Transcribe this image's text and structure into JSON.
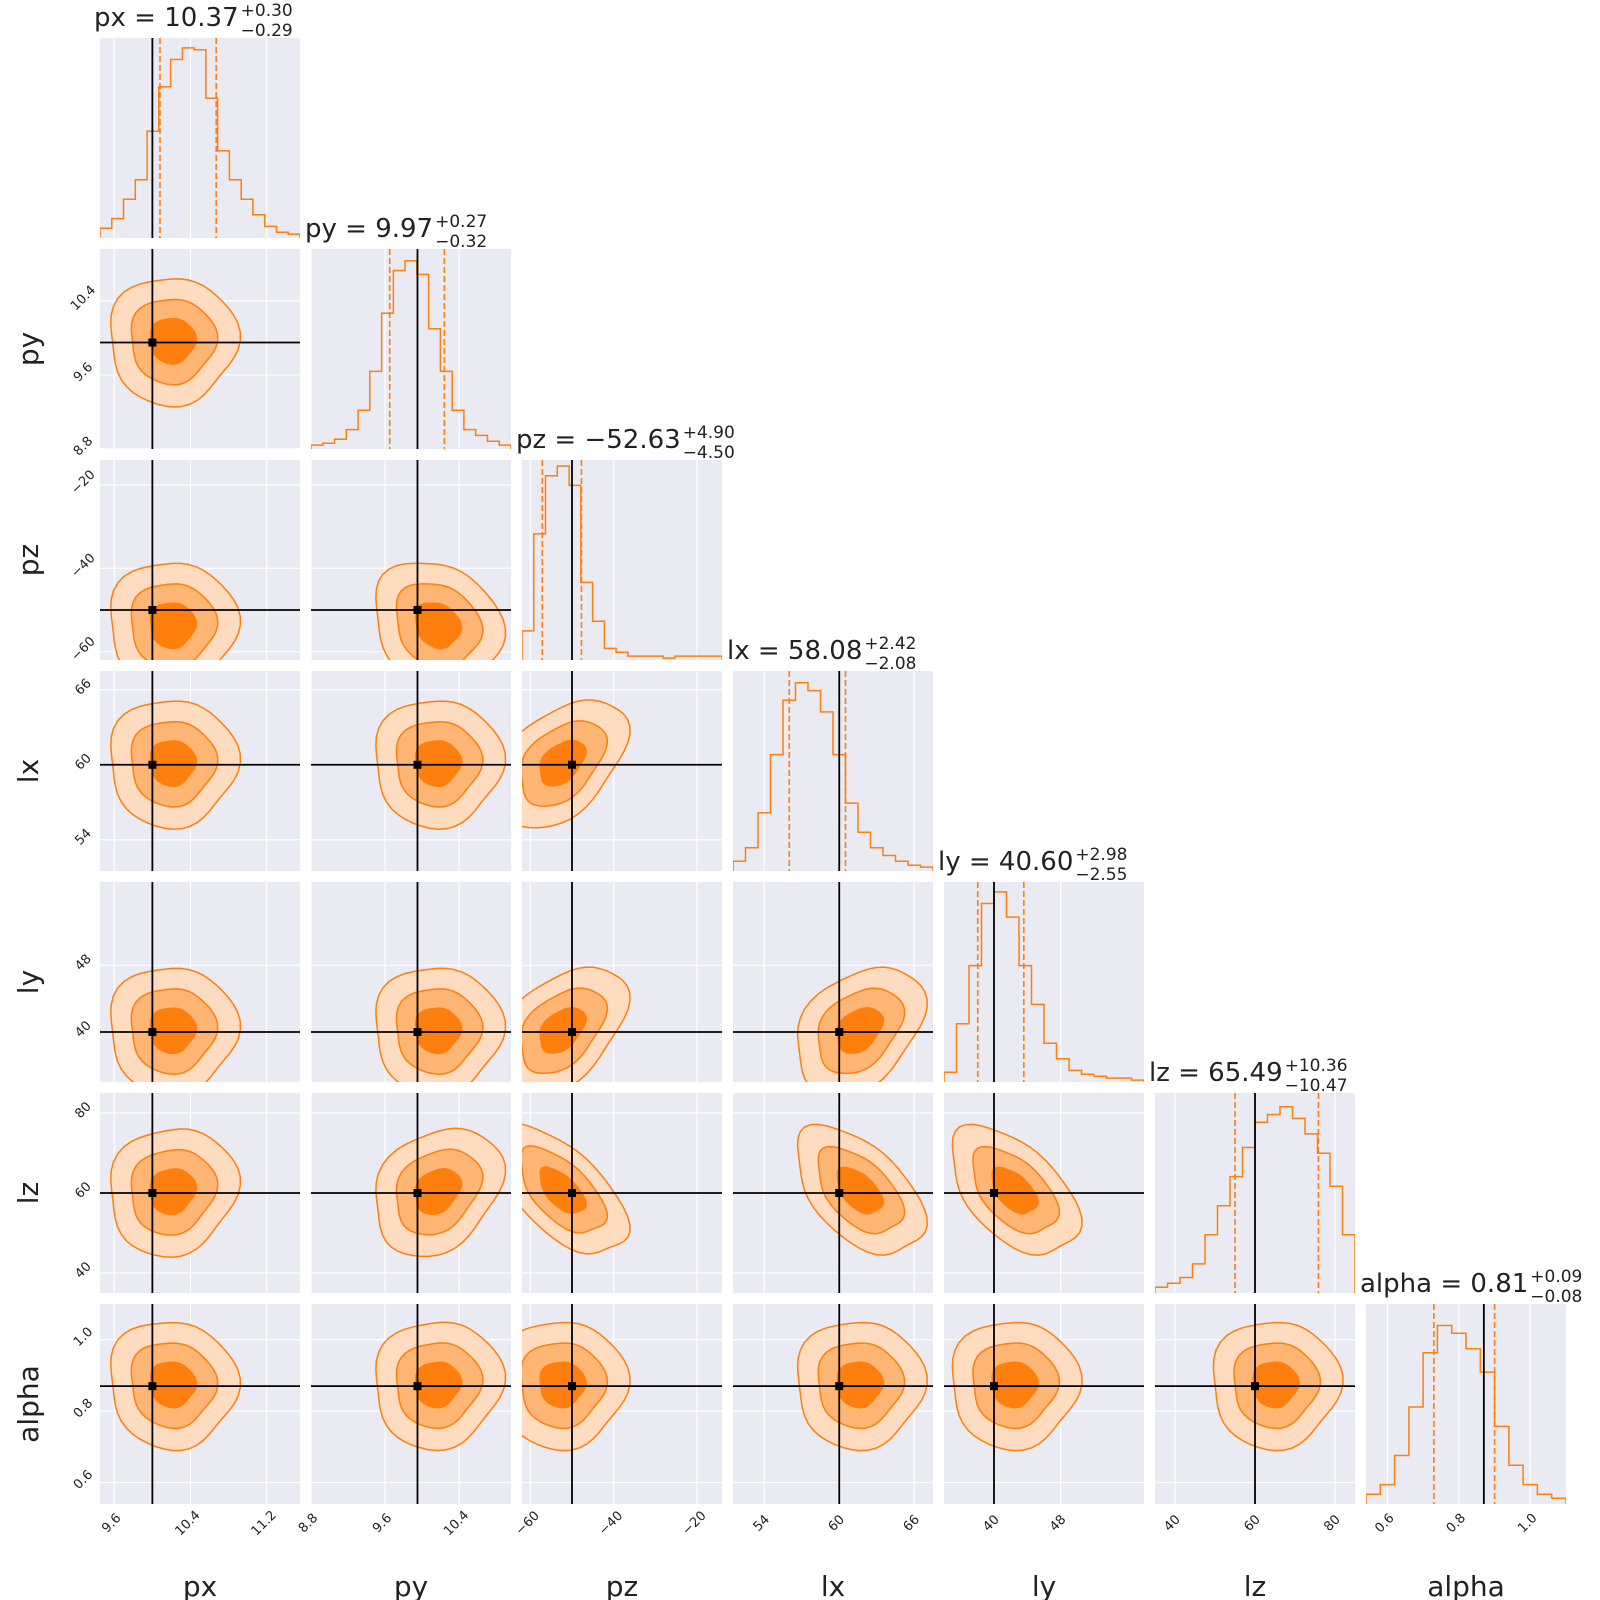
{
  "chart_data": {
    "type": "corner",
    "params": [
      {
        "name": "px",
        "truth": 10.0,
        "range": [
          9.45,
          11.55
        ],
        "ticks": [
          "9.6",
          "10.4",
          "11.2"
        ],
        "title": {
          "name": "px",
          "median": "10.37",
          "plus": "+0.30",
          "minus": "−0.29"
        },
        "hist": [
          0.05,
          0.1,
          0.2,
          0.3,
          0.55,
          0.78,
          0.92,
          0.98,
          0.97,
          0.72,
          0.45,
          0.3,
          0.2,
          0.12,
          0.06,
          0.03,
          0.02
        ]
      },
      {
        "name": "py",
        "truth": 9.95,
        "range": [
          8.8,
          10.96
        ],
        "ticks": [
          "8.8",
          "9.6",
          "10.4"
        ],
        "title": {
          "name": "py",
          "median": "9.97",
          "plus": "+0.27",
          "minus": "−0.32"
        },
        "hist": [
          0.02,
          0.03,
          0.05,
          0.1,
          0.2,
          0.4,
          0.7,
          0.92,
          0.97,
          0.9,
          0.62,
          0.4,
          0.2,
          0.1,
          0.07,
          0.04,
          0.02
        ]
      },
      {
        "name": "pz",
        "truth": -50.0,
        "range": [
          -62.0,
          -14.0
        ],
        "ticks": [
          "−60",
          "−40",
          "−20"
        ],
        "title": {
          "name": "pz",
          "median": "−52.63",
          "plus": "+4.90",
          "minus": "−4.50"
        },
        "hist": [
          0.15,
          0.65,
          0.95,
          1.0,
          0.9,
          0.4,
          0.2,
          0.06,
          0.04,
          0.02,
          0.02,
          0.02,
          0.01,
          0.02,
          0.02,
          0.02,
          0.02
        ]
      },
      {
        "name": "lx",
        "truth": 60.0,
        "range": [
          51.5,
          67.5
        ],
        "ticks": [
          "54",
          "60",
          "66"
        ],
        "title": {
          "name": "lx",
          "median": "58.08",
          "plus": "+2.42",
          "minus": "−2.08"
        },
        "hist": [
          0.05,
          0.12,
          0.3,
          0.6,
          0.88,
          0.97,
          0.93,
          0.82,
          0.6,
          0.35,
          0.2,
          0.12,
          0.08,
          0.05,
          0.03,
          0.02
        ]
      },
      {
        "name": "ly",
        "truth": 40.0,
        "range": [
          34.0,
          58.0
        ],
        "ticks": [
          "40",
          "48"
        ],
        "title": {
          "name": "ly",
          "median": "40.60",
          "plus": "+2.98",
          "minus": "−2.55"
        },
        "hist": [
          0.05,
          0.3,
          0.6,
          0.92,
          0.98,
          0.85,
          0.6,
          0.4,
          0.2,
          0.12,
          0.06,
          0.04,
          0.03,
          0.02,
          0.02,
          0.01
        ]
      },
      {
        "name": "lz",
        "truth": 60.0,
        "range": [
          35.0,
          85.0
        ],
        "ticks": [
          "40",
          "60",
          "80"
        ],
        "title": {
          "name": "lz",
          "median": "65.49",
          "plus": "+10.36",
          "minus": "−10.47"
        },
        "hist": [
          0.03,
          0.05,
          0.08,
          0.15,
          0.3,
          0.45,
          0.6,
          0.75,
          0.88,
          0.92,
          0.96,
          0.9,
          0.82,
          0.72,
          0.55,
          0.3
        ]
      },
      {
        "name": "alpha",
        "truth": 0.87,
        "range": [
          0.54,
          1.1
        ],
        "ticks": [
          "0.6",
          "0.8",
          "1.0"
        ],
        "title": {
          "name": "alpha",
          "median": "0.81",
          "plus": "+0.09",
          "minus": "−0.08"
        },
        "hist": [
          0.05,
          0.1,
          0.25,
          0.5,
          0.78,
          0.92,
          0.88,
          0.8,
          0.68,
          0.4,
          0.2,
          0.1,
          0.05,
          0.03
        ]
      }
    ],
    "quantile_lines": [
      [
        10.08,
        10.67
      ],
      [
        9.65,
        10.24
      ],
      [
        -57.13,
        -47.73
      ],
      [
        56.0,
        60.5
      ],
      [
        38.05,
        43.58
      ],
      [
        55.02,
        75.85
      ],
      [
        0.73,
        0.9
      ]
    ],
    "colors": {
      "line": "#ff7f0e",
      "fill_outer": "#ffdbbf",
      "fill_mid": "#ffb574",
      "fill_inner": "#ff7f0e",
      "truth": "#000000",
      "panel_bg": "#eaeaf2",
      "grid": "#ffffff"
    }
  }
}
